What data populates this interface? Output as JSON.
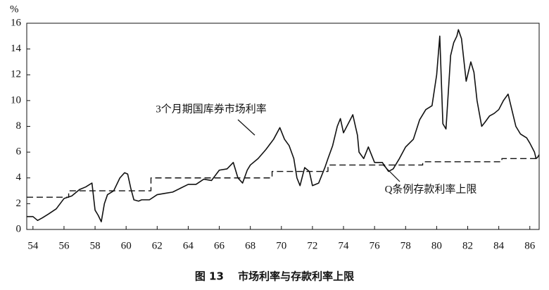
{
  "chart_data": {
    "type": "line",
    "caption": "图 13　 市场利率与存款利率上限",
    "y_unit": "%",
    "annotations": [
      "3个月期国库券市场利率",
      "Q条例存款利率上限"
    ],
    "xlim": [
      53.6,
      86.6
    ],
    "xticks": [
      54,
      56,
      58,
      60,
      62,
      64,
      66,
      68,
      70,
      72,
      74,
      76,
      78,
      80,
      82,
      84,
      86
    ],
    "ylim": [
      0,
      16
    ],
    "yticks": [
      0,
      2,
      4,
      6,
      8,
      10,
      12,
      14,
      16
    ],
    "series": [
      {
        "name": "3个月期国库券市场利率",
        "color": "#111111",
        "dash": "solid",
        "x": [
          53.6,
          54.0,
          54.3,
          54.6,
          55.0,
          55.5,
          56.0,
          56.5,
          57.0,
          57.4,
          57.8,
          58.0,
          58.2,
          58.4,
          58.6,
          58.8,
          59.2,
          59.6,
          59.9,
          60.1,
          60.3,
          60.5,
          60.8,
          61.0,
          61.5,
          62.0,
          62.5,
          63.0,
          63.5,
          64.0,
          64.5,
          65.0,
          65.5,
          66.0,
          66.5,
          66.9,
          67.2,
          67.5,
          67.8,
          68.0,
          68.5,
          69.0,
          69.5,
          69.9,
          70.2,
          70.5,
          70.8,
          71.0,
          71.2,
          71.5,
          71.8,
          72.0,
          72.4,
          72.8,
          73.0,
          73.3,
          73.6,
          73.8,
          74.0,
          74.3,
          74.6,
          74.9,
          75.0,
          75.3,
          75.6,
          76.0,
          76.5,
          76.9,
          77.2,
          77.6,
          78.0,
          78.5,
          78.9,
          79.3,
          79.7,
          80.0,
          80.2,
          80.4,
          80.6,
          80.9,
          81.1,
          81.3,
          81.4,
          81.6,
          81.9,
          82.2,
          82.4,
          82.6,
          82.9,
          83.1,
          83.4,
          83.7,
          84.0,
          84.3,
          84.6,
          84.9,
          85.1,
          85.4,
          85.8,
          86.0,
          86.3,
          86.4,
          86.5,
          86.6
        ],
        "values": [
          1.0,
          1.0,
          0.7,
          0.9,
          1.2,
          1.6,
          2.4,
          2.6,
          3.1,
          3.3,
          3.6,
          1.5,
          1.1,
          0.6,
          2.0,
          2.7,
          3.0,
          4.0,
          4.4,
          4.3,
          3.2,
          2.3,
          2.2,
          2.3,
          2.3,
          2.7,
          2.8,
          2.9,
          3.2,
          3.5,
          3.5,
          3.9,
          3.8,
          4.6,
          4.7,
          5.2,
          4.0,
          3.6,
          4.6,
          5.0,
          5.5,
          6.2,
          7.0,
          7.9,
          7.0,
          6.5,
          5.5,
          4.0,
          3.4,
          4.8,
          4.5,
          3.4,
          3.6,
          4.8,
          5.5,
          6.5,
          8.0,
          8.6,
          7.5,
          8.2,
          8.9,
          7.3,
          6.0,
          5.5,
          6.4,
          5.2,
          5.2,
          4.5,
          4.7,
          5.5,
          6.4,
          7.0,
          8.5,
          9.3,
          9.6,
          12.0,
          15.0,
          8.2,
          7.8,
          13.5,
          14.5,
          15.0,
          15.5,
          14.8,
          11.5,
          13.0,
          12.2,
          10.0,
          8.0,
          8.3,
          8.8,
          9.0,
          9.3,
          10.0,
          10.5,
          9.0,
          8.0,
          7.4,
          7.1,
          6.7,
          6.0,
          5.5,
          5.6,
          5.8
        ]
      },
      {
        "name": "Q条例存款利率上限",
        "color": "#111111",
        "dash": "dashed",
        "step": "post",
        "x": [
          53.6,
          56.3,
          61.6,
          69.4,
          73.0,
          79.1,
          84.2,
          86.6
        ],
        "values": [
          2.5,
          3.0,
          4.0,
          4.5,
          5.0,
          5.25,
          5.5,
          5.5
        ]
      }
    ]
  }
}
